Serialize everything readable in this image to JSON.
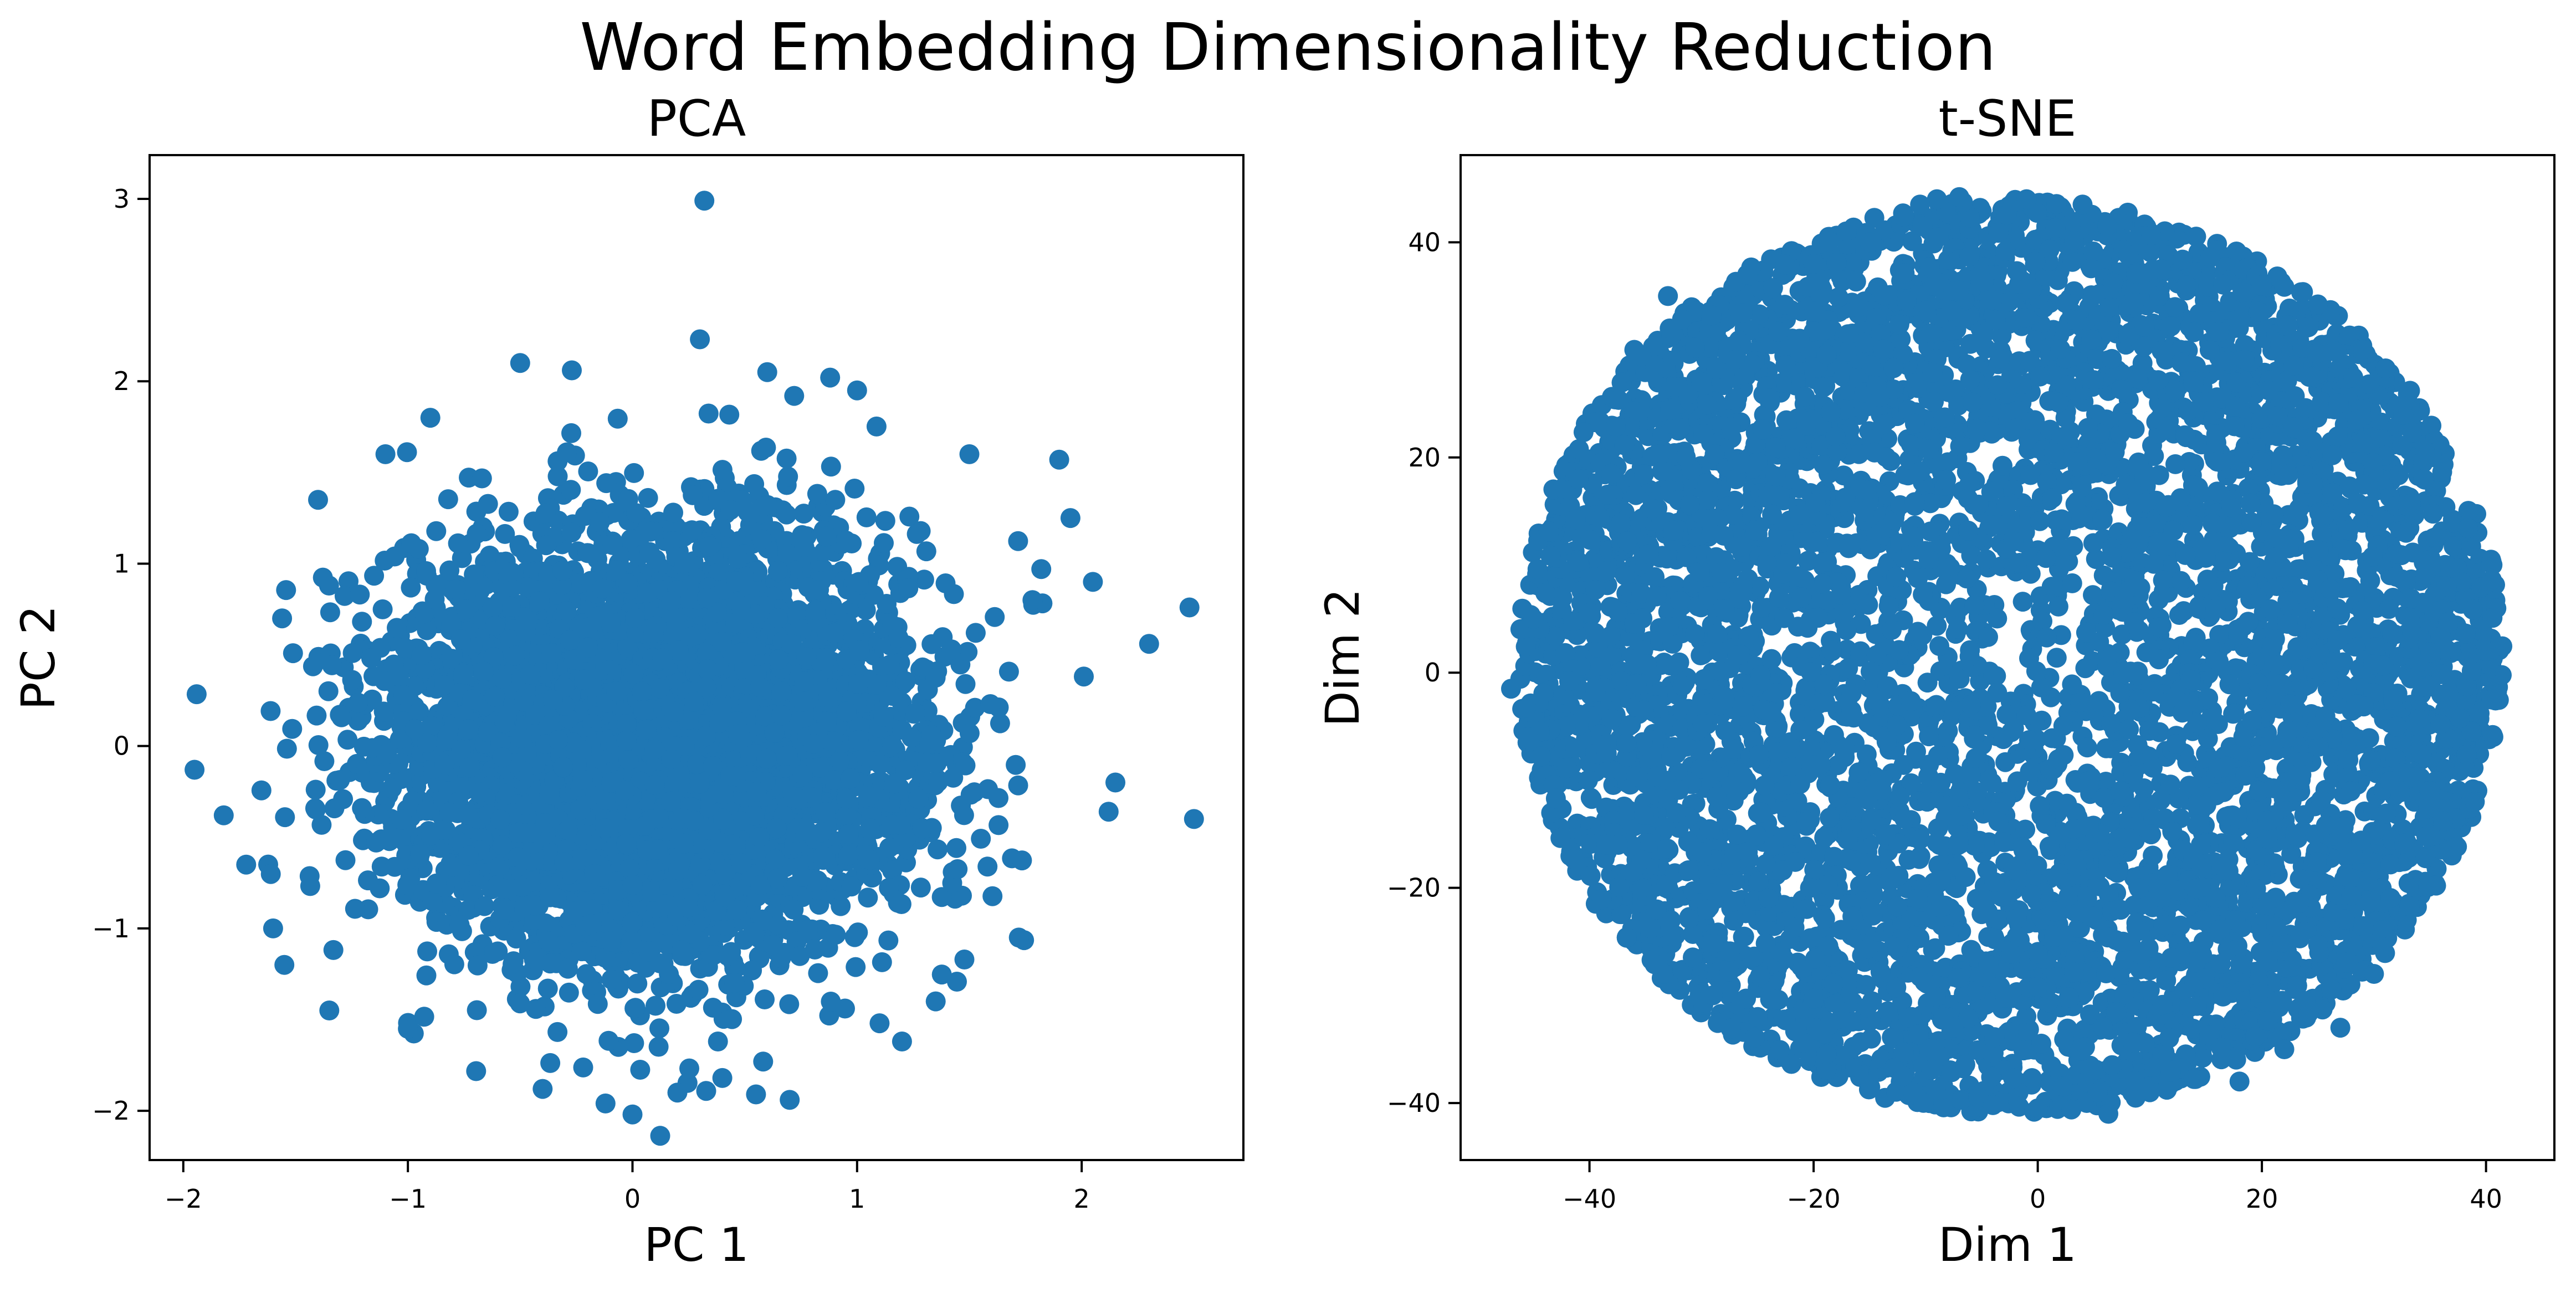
{
  "figure": {
    "suptitle": "Word Embedding Dimensionality Reduction",
    "marker_color": "#1f77b4"
  },
  "chart_data": [
    {
      "type": "scatter",
      "title": "PCA",
      "xlabel": "PC 1",
      "ylabel": "PC 2",
      "xlim": [
        -2.15,
        2.72
      ],
      "ylim": [
        -2.27,
        3.24
      ],
      "xticks": [
        {
          "value": -2,
          "label": "−2"
        },
        {
          "value": -1,
          "label": "−1"
        },
        {
          "value": 0,
          "label": "0"
        },
        {
          "value": 1,
          "label": "1"
        },
        {
          "value": 2,
          "label": "2"
        }
      ],
      "yticks": [
        {
          "value": -2,
          "label": "−2"
        },
        {
          "value": -1,
          "label": "−1"
        },
        {
          "value": 0,
          "label": "0"
        },
        {
          "value": 1,
          "label": "1"
        },
        {
          "value": 2,
          "label": "2"
        },
        {
          "value": 3,
          "label": "3"
        }
      ],
      "grid": false,
      "legend": "none",
      "distribution": {
        "shape": "gaussian-cloud",
        "center": [
          0.1,
          0.0
        ],
        "spread": [
          0.55,
          0.55
        ],
        "point_count_estimate": 6000
      },
      "points": [
        [
          0.32,
          2.99
        ],
        [
          2.48,
          0.76
        ],
        [
          2.5,
          -0.4
        ],
        [
          -1.95,
          -0.13
        ],
        [
          -1.6,
          -1.0
        ],
        [
          0.0,
          -2.02
        ],
        [
          0.7,
          -1.94
        ],
        [
          -0.12,
          -1.96
        ],
        [
          1.2,
          -1.62
        ],
        [
          2.3,
          0.56
        ],
        [
          1.9,
          1.57
        ],
        [
          0.3,
          2.23
        ],
        [
          -0.5,
          2.1
        ],
        [
          1.0,
          1.95
        ],
        [
          -1.72,
          -0.65
        ],
        [
          -1.55,
          -1.2
        ],
        [
          2.12,
          -0.36
        ],
        [
          -0.9,
          1.8
        ],
        [
          1.95,
          1.25
        ],
        [
          0.55,
          -1.91
        ],
        [
          0.6,
          2.05
        ],
        [
          -0.27,
          2.06
        ],
        [
          0.88,
          2.02
        ],
        [
          -1.82,
          -0.38
        ],
        [
          1.5,
          1.6
        ],
        [
          -1.0,
          -1.55
        ],
        [
          1.1,
          -1.52
        ],
        [
          2.05,
          0.9
        ],
        [
          -1.4,
          1.35
        ],
        [
          -1.35,
          -1.45
        ],
        [
          1.72,
          -1.05
        ],
        [
          0.4,
          -1.82
        ],
        [
          -0.4,
          -1.88
        ],
        [
          1.82,
          0.97
        ],
        [
          -1.56,
          0.7
        ],
        [
          0.72,
          1.92
        ],
        [
          1.35,
          -1.4
        ],
        [
          -1.1,
          1.6
        ],
        [
          0.2,
          -1.9
        ],
        [
          2.15,
          -0.2
        ]
      ]
    },
    {
      "type": "scatter",
      "title": "t-SNE",
      "xlabel": "Dim 1",
      "ylabel": "Dim 2",
      "xlim": [
        -51.5,
        46.1
      ],
      "ylim": [
        -45.3,
        48.1
      ],
      "xticks": [
        {
          "value": -40,
          "label": "−40"
        },
        {
          "value": -20,
          "label": "−20"
        },
        {
          "value": 0,
          "label": "0"
        },
        {
          "value": 20,
          "label": "20"
        },
        {
          "value": 40,
          "label": "40"
        }
      ],
      "yticks": [
        {
          "value": -40,
          "label": "−40"
        },
        {
          "value": -20,
          "label": "−20"
        },
        {
          "value": 0,
          "label": "0"
        },
        {
          "value": 20,
          "label": "20"
        },
        {
          "value": 40,
          "label": "40"
        }
      ],
      "grid": false,
      "legend": "none",
      "distribution": {
        "shape": "disc",
        "center": [
          -2.5,
          1.5
        ],
        "radius": [
          44.0,
          42.5
        ],
        "point_count_estimate": 6000
      },
      "points": [
        [
          -47.0,
          -1.5
        ],
        [
          -43.0,
          -11.7
        ],
        [
          -9.0,
          44.0
        ],
        [
          4.0,
          43.5
        ],
        [
          -7.0,
          44.2
        ],
        [
          -1.0,
          44.0
        ],
        [
          6.2,
          41.5
        ],
        [
          -10.5,
          43.5
        ],
        [
          6.3,
          -41.0
        ],
        [
          0.0,
          -40.5
        ],
        [
          -4.0,
          -40.2
        ],
        [
          3.0,
          -40.6
        ],
        [
          -33.0,
          35.0
        ],
        [
          -36.0,
          30.0
        ],
        [
          40.5,
          -2.5
        ],
        [
          40.0,
          2.0
        ],
        [
          -41.0,
          18.0
        ],
        [
          28.5,
          23.5
        ],
        [
          27.0,
          -33.0
        ],
        [
          -29.0,
          -30.0
        ],
        [
          33.0,
          15.5
        ],
        [
          35.0,
          -11.0
        ],
        [
          -45.0,
          5.0
        ],
        [
          -45.5,
          -6.0
        ],
        [
          11.0,
          37.5
        ],
        [
          20.0,
          36.0
        ],
        [
          -20.0,
          38.0
        ],
        [
          -25.0,
          -32.0
        ],
        [
          18.0,
          -38.0
        ],
        [
          -12.0,
          -37.5
        ],
        [
          36.5,
          8.0
        ],
        [
          -38.5,
          -16.0
        ],
        [
          29.0,
          30.0
        ],
        [
          10.0,
          -39.0
        ],
        [
          -15.0,
          40.0
        ],
        [
          30.0,
          -28.0
        ],
        [
          -30.0,
          27.0
        ],
        [
          39.0,
          -12.0
        ],
        [
          -34.0,
          -22.0
        ],
        [
          22.0,
          -35.0
        ]
      ]
    }
  ]
}
